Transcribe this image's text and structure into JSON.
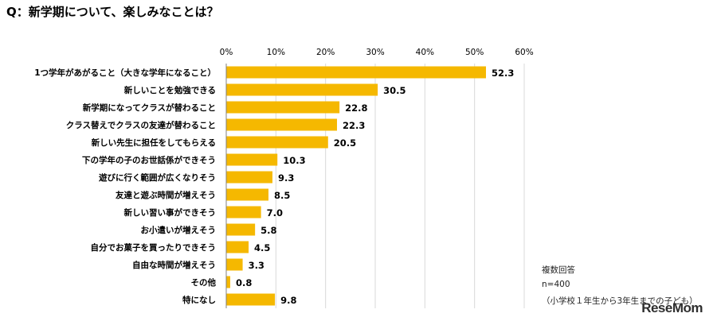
{
  "title": "Q：新学期について、楽しみなことは？",
  "notes": {
    "line1": "複数回答",
    "line2": "n=400",
    "line3": "（小学校１年生から3年生までの子ども）"
  },
  "watermark": "ReseMom",
  "colors": {
    "bar": "#F5B800",
    "axis": "#808080"
  },
  "chart_data": {
    "type": "bar",
    "orientation": "horizontal",
    "categories": [
      "1つ学年があがること（大きな学年になること）",
      "新しいことを勉強できる",
      "新学期になってクラスが替わること",
      "クラス替えでクラスの友達が替わること",
      "新しい先生に担任をしてもらえる",
      "下の学年の子のお世話係ができそう",
      "遊びに行く範囲が広くなりそう",
      "友達と遊ぶ時間が増えそう",
      "新しい習い事ができそう",
      "お小遣いが増えそう",
      "自分でお菓子を買ったりできそう",
      "自由な時間が増えそう",
      "その他",
      "特になし"
    ],
    "values": [
      52.3,
      30.5,
      22.8,
      22.3,
      20.5,
      10.3,
      9.3,
      8.5,
      7.0,
      5.8,
      4.5,
      3.3,
      0.8,
      9.8
    ],
    "value_labels": [
      "52.3",
      "30.5",
      "22.8",
      "22.3",
      "20.5",
      "10.3",
      "9.3",
      "8.5",
      "7.0",
      "5.8",
      "4.5",
      "3.3",
      "0.8",
      "9.8"
    ],
    "xlim": [
      0,
      60
    ],
    "ticks": [
      0,
      10,
      20,
      30,
      40,
      50,
      60
    ],
    "tick_labels": [
      "0%",
      "10%",
      "20%",
      "30%",
      "40%",
      "50%",
      "60%"
    ],
    "grid": true,
    "legend": "none"
  }
}
